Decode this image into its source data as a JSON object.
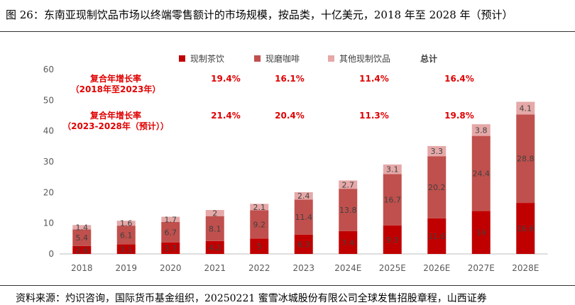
{
  "figure": {
    "title": "图 26：东南亚现制饮品市场以终端零售额计的市场规模，按品类，十亿美元，2018 年至 2028 年（预计）",
    "source": "资料来源：灼识咨询，国际货币基金组织，20250221 蜜雪冰城股份有限公司全球发售招股章程，山西证券"
  },
  "colors": {
    "tea": "#c00000",
    "coffee": "#c0504d",
    "other": "#e6a8a8",
    "cagr_text": "#e00000",
    "axis": "#595959"
  },
  "chart_data": {
    "type": "bar",
    "stacked": true,
    "categories": [
      "2018",
      "2019",
      "2020",
      "2021",
      "2022",
      "2023",
      "2024E",
      "2025E",
      "2026E",
      "2027E",
      "2028E"
    ],
    "series": [
      {
        "name": "现制茶饮",
        "color": "#c00000",
        "values": [
          2.6,
          3.1,
          3.7,
          4.2,
          5.0,
          6.3,
          7.4,
          9.3,
          11.6,
          14.0,
          16.6
        ]
      },
      {
        "name": "现磨咖啡",
        "color": "#c0504d",
        "values": [
          5.4,
          6.1,
          6.7,
          8.1,
          9.2,
          11.4,
          13.8,
          16.7,
          20.2,
          24.4,
          28.8
        ]
      },
      {
        "name": "其他现制饮品",
        "color": "#e6a8a8",
        "values": [
          1.4,
          1.6,
          1.7,
          2.0,
          2.1,
          2.4,
          2.7,
          3.1,
          3.3,
          3.8,
          4.1
        ]
      }
    ],
    "labels": [
      [
        "2.6",
        "3.1",
        "3.7",
        "4.2",
        "5",
        "6.3",
        "7.4",
        "9.3",
        "11.6",
        "14",
        "16.6"
      ],
      [
        "5.4",
        "6.1",
        "6.7",
        "8.1",
        "9.2",
        "11.4",
        "13.8",
        "16.7",
        "20.2",
        "24.4",
        "28.8"
      ],
      [
        "1.4",
        "1.6",
        "1.7",
        "2",
        "2.1",
        "2.4",
        "2.7",
        "3.1",
        "3.3",
        "3.8",
        "4.1"
      ]
    ],
    "legend_total": "总计",
    "yticks": [
      "0",
      "10",
      "20",
      "30",
      "40",
      "50",
      "60"
    ],
    "ylim": [
      0,
      60
    ],
    "grid": false,
    "legend_position": "top",
    "cagr_rows": [
      {
        "label_lines": [
          "复合年增长率",
          "（2018年至2023年）"
        ],
        "values": [
          "19.4%",
          "16.1%",
          "11.4%",
          "16.4%"
        ],
        "y_value": 57
      },
      {
        "label_lines": [
          "复合年增长率",
          "（2023-2028年（预计））"
        ],
        "values": [
          "21.4%",
          "20.4%",
          "11.3%",
          "19.8%"
        ],
        "y_value": 45
      }
    ]
  }
}
